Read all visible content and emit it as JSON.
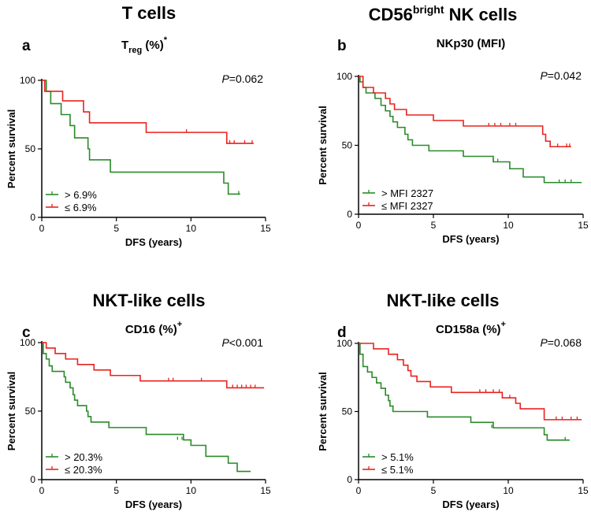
{
  "figure": {
    "section_titles": [
      {
        "text": "T cells",
        "sup": ""
      },
      {
        "text": "CD56",
        "sup": "bright",
        "after": " NK cells"
      },
      {
        "text": "NKT-like cells",
        "sup": ""
      },
      {
        "text": "NKT-like cells",
        "sup": ""
      }
    ]
  },
  "colors": {
    "above": "#2a8a2a",
    "below": "#e8231f",
    "axis": "#000000"
  },
  "chart_data": [
    {
      "panel": "a",
      "type": "line",
      "title": "T cells",
      "subtitle": {
        "base": "T",
        "sub": "reg",
        "rest": " (%)",
        "sup": "*"
      },
      "p_value": {
        "p": "P",
        "rest": "=0.062"
      },
      "xlabel": "DFS (years)",
      "ylabel": "Percent survival",
      "xlim": [
        0,
        15
      ],
      "ylim": [
        0,
        100
      ],
      "xticks": [
        0,
        5,
        10,
        15
      ],
      "yticks": [
        0,
        50,
        100
      ],
      "legend": "bottom-left",
      "series": [
        {
          "name": "> 6.9%",
          "color_key": "above",
          "steps": [
            [
              0,
              100
            ],
            [
              0.3,
              92
            ],
            [
              0.6,
              83
            ],
            [
              1.3,
              75
            ],
            [
              1.9,
              67
            ],
            [
              2.2,
              58
            ],
            [
              3.1,
              50
            ],
            [
              3.2,
              42
            ],
            [
              4.6,
              33
            ],
            [
              12.2,
              25
            ],
            [
              12.5,
              17
            ],
            [
              13.3,
              17
            ]
          ],
          "censors": [
            [
              13.2,
              17
            ]
          ]
        },
        {
          "name": "≤ 6.9%",
          "color_key": "below",
          "steps": [
            [
              0,
              100
            ],
            [
              0.2,
              92
            ],
            [
              1.4,
              85
            ],
            [
              2.8,
              77
            ],
            [
              3.2,
              69
            ],
            [
              7,
              62
            ],
            [
              12.4,
              54
            ],
            [
              14.2,
              54
            ]
          ],
          "censors": [
            [
              9.7,
              62
            ],
            [
              12.6,
              54
            ],
            [
              12.9,
              54
            ],
            [
              13.6,
              54
            ],
            [
              14.1,
              54
            ]
          ]
        }
      ]
    },
    {
      "panel": "b",
      "type": "line",
      "title": "CD56 bright NK cells",
      "subtitle": {
        "base": "NKp30 (MFI)",
        "sub": "",
        "rest": "",
        "sup": ""
      },
      "p_value": {
        "p": "P",
        "rest": "=0.042"
      },
      "xlabel": "DFS (years)",
      "ylabel": "Percent survival",
      "xlim": [
        0,
        15
      ],
      "ylim": [
        0,
        100
      ],
      "xticks": [
        0,
        5,
        10,
        15
      ],
      "yticks": [
        0,
        50,
        100
      ],
      "legend": "bottom-left",
      "series": [
        {
          "name": "> MFI 2327",
          "color_key": "above",
          "steps": [
            [
              0,
              100
            ],
            [
              0.1,
              96
            ],
            [
              0.3,
              92
            ],
            [
              0.5,
              88
            ],
            [
              1.1,
              84
            ],
            [
              1.5,
              79
            ],
            [
              1.8,
              75
            ],
            [
              2.1,
              71
            ],
            [
              2.3,
              67
            ],
            [
              2.6,
              63
            ],
            [
              3.1,
              58
            ],
            [
              3.3,
              54
            ],
            [
              3.6,
              50
            ],
            [
              4.7,
              46
            ],
            [
              7,
              42
            ],
            [
              9,
              38
            ],
            [
              10.1,
              33
            ],
            [
              11,
              27
            ],
            [
              12.4,
              23
            ],
            [
              14.9,
              23
            ]
          ],
          "censors": [
            [
              9,
              38
            ],
            [
              9.3,
              38
            ],
            [
              13.4,
              23
            ],
            [
              13.8,
              23
            ],
            [
              14.2,
              23
            ]
          ]
        },
        {
          "name": "≤ MFI 2327",
          "color_key": "below",
          "steps": [
            [
              0,
              100
            ],
            [
              0.3,
              92
            ],
            [
              1,
              88
            ],
            [
              1.8,
              84
            ],
            [
              2.1,
              80
            ],
            [
              2.4,
              76
            ],
            [
              3.2,
              72
            ],
            [
              5,
              68
            ],
            [
              7,
              64
            ],
            [
              12.3,
              58
            ],
            [
              12.5,
              53
            ],
            [
              12.8,
              49
            ],
            [
              14.2,
              49
            ]
          ],
          "censors": [
            [
              8.7,
              64
            ],
            [
              9.1,
              64
            ],
            [
              9.5,
              64
            ],
            [
              10.1,
              64
            ],
            [
              10.5,
              64
            ],
            [
              13.3,
              49
            ],
            [
              13.9,
              49
            ],
            [
              14.1,
              49
            ]
          ]
        }
      ]
    },
    {
      "panel": "c",
      "type": "line",
      "title": "NKT-like cells",
      "subtitle": {
        "base": "CD16",
        "sub": "",
        "rest": " (%)",
        "sup": "+"
      },
      "p_value": {
        "p": "P",
        "rest": "<0.001"
      },
      "xlabel": "DFS (years)",
      "ylabel": "Percent survival",
      "xlim": [
        0,
        15
      ],
      "ylim": [
        0,
        100
      ],
      "xticks": [
        0,
        5,
        10,
        15
      ],
      "yticks": [
        0,
        50,
        100
      ],
      "legend": "bottom-left",
      "series": [
        {
          "name": "> 20.3%",
          "color_key": "above",
          "steps": [
            [
              0,
              100
            ],
            [
              0.1,
              92
            ],
            [
              0.3,
              88
            ],
            [
              0.5,
              83
            ],
            [
              0.7,
              79
            ],
            [
              1.5,
              75
            ],
            [
              1.6,
              71
            ],
            [
              1.9,
              67
            ],
            [
              2.1,
              62
            ],
            [
              2.2,
              58
            ],
            [
              2.4,
              54
            ],
            [
              3,
              50
            ],
            [
              3.1,
              46
            ],
            [
              3.3,
              42
            ],
            [
              4.5,
              38
            ],
            [
              7,
              33
            ],
            [
              9.5,
              29
            ],
            [
              10,
              25
            ],
            [
              11,
              17
            ],
            [
              12.5,
              12
            ],
            [
              13.1,
              6
            ],
            [
              14,
              6
            ]
          ],
          "censors": [
            [
              9.1,
              29
            ],
            [
              9.4,
              29
            ]
          ]
        },
        {
          "name": "≤ 20.3%",
          "color_key": "below",
          "steps": [
            [
              0,
              100
            ],
            [
              0.3,
              96
            ],
            [
              0.9,
              92
            ],
            [
              1.6,
              88
            ],
            [
              2.4,
              84
            ],
            [
              3.5,
              80
            ],
            [
              4.6,
              76
            ],
            [
              6.6,
              72
            ],
            [
              12.4,
              67
            ],
            [
              14.9,
              67
            ]
          ],
          "censors": [
            [
              8.5,
              72
            ],
            [
              8.8,
              72
            ],
            [
              10.7,
              72
            ],
            [
              12.8,
              67
            ],
            [
              13.1,
              67
            ],
            [
              13.4,
              67
            ],
            [
              13.7,
              67
            ],
            [
              14,
              67
            ],
            [
              14.3,
              67
            ]
          ]
        }
      ]
    },
    {
      "panel": "d",
      "type": "line",
      "title": "NKT-like cells",
      "subtitle": {
        "base": "CD158a",
        "sub": "",
        "rest": " (%)",
        "sup": "+"
      },
      "p_value": {
        "p": "P",
        "rest": "=0.068"
      },
      "xlabel": "DFS (years)",
      "ylabel": "Percent survival",
      "xlim": [
        0,
        15
      ],
      "ylim": [
        0,
        100
      ],
      "xticks": [
        0,
        5,
        10,
        15
      ],
      "yticks": [
        0,
        50,
        100
      ],
      "legend": "bottom-left",
      "series": [
        {
          "name": "> 5.1%",
          "color_key": "above",
          "steps": [
            [
              0,
              100
            ],
            [
              0.1,
              92
            ],
            [
              0.3,
              83
            ],
            [
              0.6,
              79
            ],
            [
              0.9,
              75
            ],
            [
              1.2,
              71
            ],
            [
              1.5,
              67
            ],
            [
              1.8,
              62
            ],
            [
              2,
              58
            ],
            [
              2.1,
              54
            ],
            [
              2.3,
              50
            ],
            [
              4.6,
              46
            ],
            [
              7.5,
              42
            ],
            [
              9,
              38
            ],
            [
              12.4,
              33
            ],
            [
              12.6,
              29
            ],
            [
              14.1,
              29
            ]
          ],
          "censors": [
            [
              8.9,
              38
            ],
            [
              13.8,
              29
            ]
          ]
        },
        {
          "name": "≤ 5.1%",
          "color_key": "below",
          "steps": [
            [
              0,
              100
            ],
            [
              1,
              96
            ],
            [
              2,
              92
            ],
            [
              2.6,
              88
            ],
            [
              3,
              84
            ],
            [
              3.3,
              80
            ],
            [
              3.5,
              76
            ],
            [
              3.9,
              72
            ],
            [
              4.8,
              68
            ],
            [
              6.2,
              64
            ],
            [
              9.6,
              60
            ],
            [
              10.5,
              56
            ],
            [
              10.8,
              52
            ],
            [
              12.4,
              44
            ],
            [
              14.9,
              44
            ]
          ],
          "censors": [
            [
              8.1,
              64
            ],
            [
              8.5,
              64
            ],
            [
              9,
              64
            ],
            [
              9.4,
              64
            ],
            [
              10.1,
              60
            ],
            [
              13.2,
              44
            ],
            [
              13.6,
              44
            ],
            [
              14.2,
              44
            ],
            [
              14.6,
              44
            ]
          ]
        }
      ]
    }
  ]
}
